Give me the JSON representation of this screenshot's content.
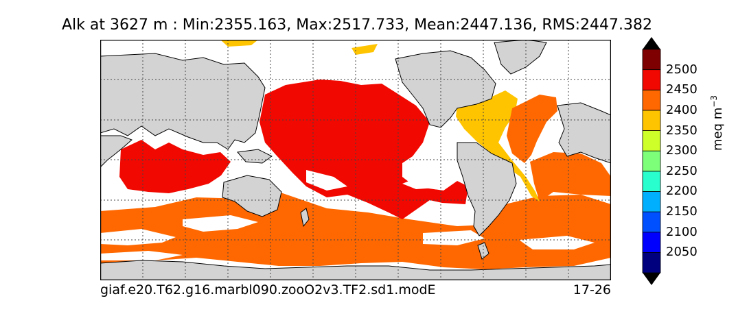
{
  "title": "Alk at 3627 m : Min:2355.163, Max:2517.733, Mean:2447.136, RMS:2447.382",
  "footer": {
    "case_name": "giaf.e20.T62.g16.marbl090.zooO2v3.TF2.sd1.modE",
    "years": "17-26"
  },
  "colorbar": {
    "units_label": "meq m",
    "units_exponent": "−3",
    "levels": [
      {
        "label": "",
        "color": "#00007f"
      },
      {
        "label": "2050",
        "color": "#0000ff"
      },
      {
        "label": "2100",
        "color": "#0050ff"
      },
      {
        "label": "2150",
        "color": "#00b0ff"
      },
      {
        "label": "2200",
        "color": "#29ffce"
      },
      {
        "label": "2250",
        "color": "#7dff7a"
      },
      {
        "label": "2300",
        "color": "#ceff29"
      },
      {
        "label": "2350",
        "color": "#ffc400"
      },
      {
        "label": "2400",
        "color": "#ff6800"
      },
      {
        "label": "2450",
        "color": "#f10800"
      },
      {
        "label": "2500",
        "color": "#7f0000"
      }
    ],
    "tick_labels": [
      "2050",
      "2100",
      "2150",
      "2200",
      "2250",
      "2300",
      "2350",
      "2400",
      "2450",
      "2500"
    ]
  },
  "map": {
    "land_color": "#d3d3d3",
    "missing_color": "#ffffff",
    "grid": true,
    "extend": "both"
  }
}
